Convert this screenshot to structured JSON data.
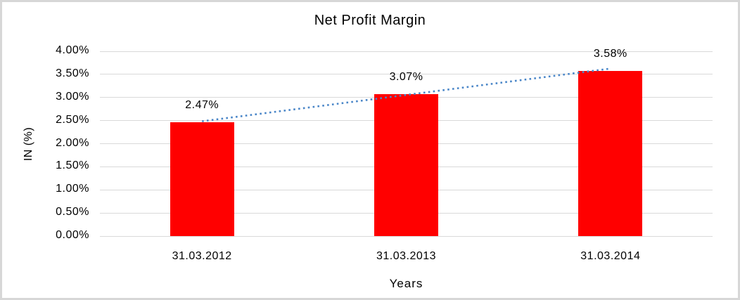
{
  "chart_data": {
    "type": "bar",
    "title": "Net Profit Margin",
    "xlabel": "Years",
    "ylabel": "IN (%)",
    "categories": [
      "31.03.2012",
      "31.03.2013",
      "31.03.2014"
    ],
    "values": [
      2.47,
      3.07,
      3.58
    ],
    "data_labels": [
      "2.47%",
      "3.07%",
      "3.58%"
    ],
    "ylim": [
      0,
      4
    ],
    "ytick_step": 0.5,
    "ytick_labels": [
      "0.00%",
      "0.50%",
      "1.00%",
      "1.50%",
      "2.00%",
      "2.50%",
      "3.00%",
      "3.50%",
      "4.00%"
    ],
    "grid": true,
    "legend": "none",
    "bar_color": "#ff0000",
    "grid_color": "#d9d9d9",
    "text_color": "#000000",
    "trendline": {
      "style": "dotted",
      "color": "#4a86c8"
    }
  }
}
